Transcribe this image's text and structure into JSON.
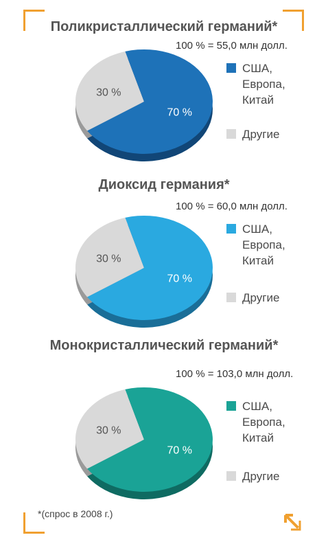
{
  "chart_data": [
    {
      "type": "pie",
      "title": "Поликристаллический германий*",
      "total_label": "100 % = 55,0 млн долл.",
      "color": "#1e72b8",
      "color_dark": "#114677",
      "slices": [
        {
          "label": "США,\nЕвропа,\nКитай",
          "value": 70,
          "value_label": "70 %"
        },
        {
          "label": "Другие",
          "value": 30,
          "value_label": "30 %"
        }
      ]
    },
    {
      "type": "pie",
      "title": "Диоксид германия*",
      "total_label": "100 % = 60,0 млн долл.",
      "color": "#2aa9e0",
      "color_dark": "#1a6e98",
      "slices": [
        {
          "label": "США,\nЕвропа,\nКитай",
          "value": 70,
          "value_label": "70 %"
        },
        {
          "label": "Другие",
          "value": 30,
          "value_label": "30 %"
        }
      ]
    },
    {
      "type": "pie",
      "title": "Монокристаллический германий*",
      "total_label": "100 % = 103,0 млн долл.",
      "color": "#1aa396",
      "color_dark": "#0f6b62",
      "slices": [
        {
          "label": "США,\nЕвропа,\nКитай",
          "value": 70,
          "value_label": "70 %"
        },
        {
          "label": "Другие",
          "value": 30,
          "value_label": "30 %"
        }
      ]
    }
  ],
  "colors": {
    "others": "#d9d9d9",
    "others_dark": "#9a9a9a",
    "frame_accent": "#f0a030"
  },
  "footnote": "*(спрос в 2008 г.)",
  "icons": {
    "corner_arrow": "arrow-up-left-icon"
  }
}
